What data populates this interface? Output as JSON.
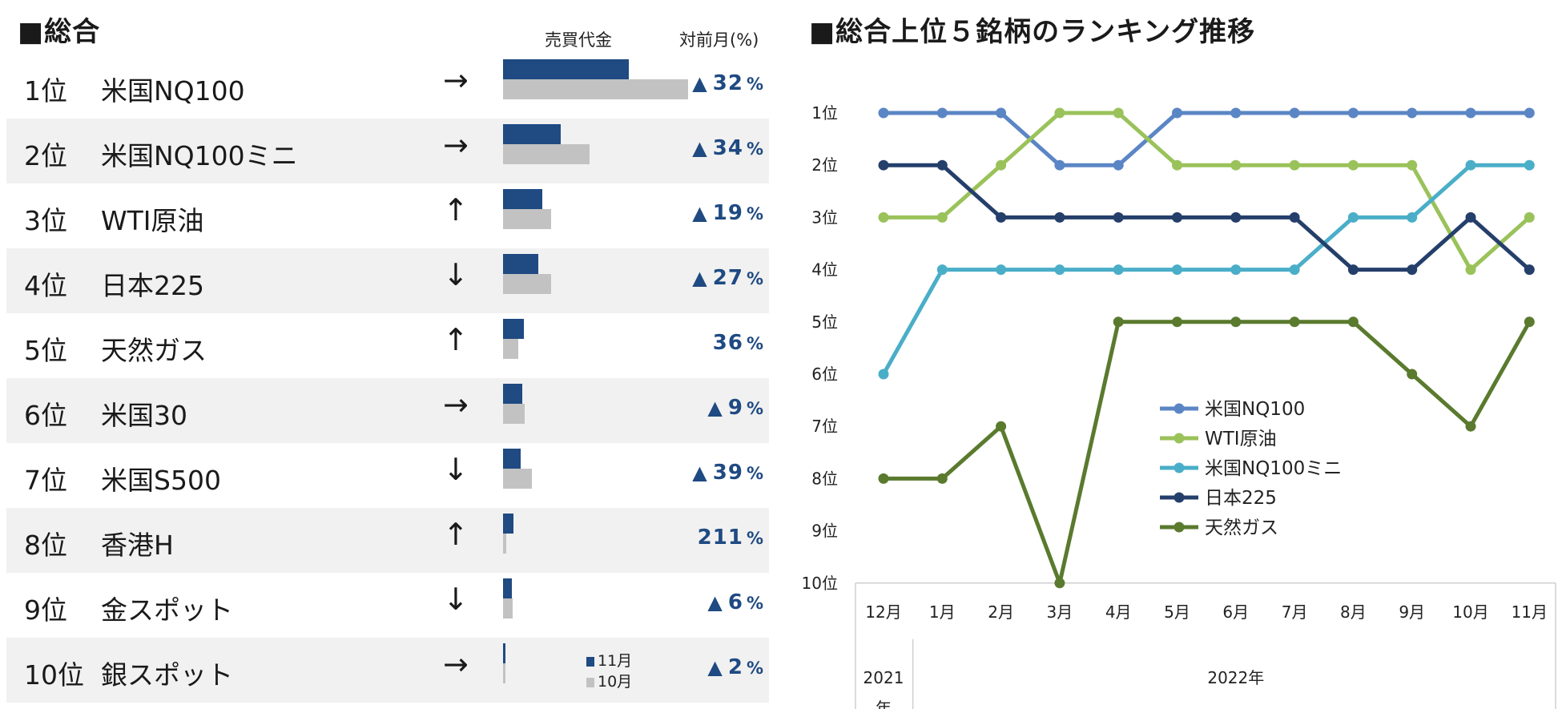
{
  "left": {
    "title": "■総合",
    "header_volume": "売買代金",
    "header_change": "対前月(%)",
    "legend": {
      "nov": "11月",
      "oct": "10月"
    },
    "colors": {
      "nov": "#1f4a82",
      "oct": "#c2c2c2"
    },
    "rows": [
      {
        "rank": "1位",
        "name": "米国NQ100",
        "arrow": "→",
        "nov": 100,
        "oct": 147,
        "triangle": "▲",
        "change": "32",
        "unit": "%"
      },
      {
        "rank": "2位",
        "name": "米国NQ100ミニ",
        "arrow": "→",
        "nov": 46,
        "oct": 69,
        "triangle": "▲",
        "change": "34",
        "unit": "%"
      },
      {
        "rank": "3位",
        "name": "WTI原油",
        "arrow": "↑",
        "nov": 31,
        "oct": 38,
        "triangle": "▲",
        "change": "19",
        "unit": "%"
      },
      {
        "rank": "4位",
        "name": "日本225",
        "arrow": "↓",
        "nov": 28,
        "oct": 38,
        "triangle": "▲",
        "change": "27",
        "unit": "%"
      },
      {
        "rank": "5位",
        "name": "天然ガス",
        "arrow": "↑",
        "nov": 16.5,
        "oct": 12.3,
        "triangle": "",
        "change": "36",
        "unit": "%"
      },
      {
        "rank": "6位",
        "name": "米国30",
        "arrow": "→",
        "nov": 15.5,
        "oct": 17,
        "triangle": "▲",
        "change": "9",
        "unit": "%"
      },
      {
        "rank": "7位",
        "name": "米国S500",
        "arrow": "↓",
        "nov": 14,
        "oct": 23,
        "triangle": "▲",
        "change": "39",
        "unit": "%"
      },
      {
        "rank": "8位",
        "name": "香港H",
        "arrow": "↑",
        "nov": 8,
        "oct": 2.6,
        "triangle": "",
        "change": "211",
        "unit": "%"
      },
      {
        "rank": "9位",
        "name": "金スポット",
        "arrow": "↓",
        "nov": 7,
        "oct": 7.5,
        "triangle": "▲",
        "change": "6",
        "unit": "%"
      },
      {
        "rank": "10位",
        "name": "銀スポット",
        "arrow": "→",
        "nov": 1.8,
        "oct": 1.8,
        "triangle": "▲",
        "change": "2",
        "unit": "%"
      }
    ]
  },
  "chart_data": {
    "type": "line",
    "title": "■総合上位５銘柄のランキング推移",
    "categories": [
      "12月",
      "1月",
      "2月",
      "3月",
      "4月",
      "5月",
      "6月",
      "7月",
      "8月",
      "9月",
      "10月",
      "11月"
    ],
    "year_labels": [
      {
        "label_line1": "2021",
        "label_line2": "年",
        "from": 0,
        "to": 0
      },
      {
        "label_line1": "2022年",
        "label_line2": "",
        "from": 1,
        "to": 11
      }
    ],
    "y_tick_labels": [
      "1位",
      "2位",
      "3位",
      "4位",
      "5位",
      "6位",
      "7位",
      "8位",
      "9位",
      "10位"
    ],
    "ylim": [
      1,
      10
    ],
    "y_inverted": true,
    "series": [
      {
        "name": "米国NQ100",
        "color": "#5b86c5",
        "values": [
          1,
          1,
          1,
          2,
          2,
          1,
          1,
          1,
          1,
          1,
          1,
          1
        ]
      },
      {
        "name": "WTI原油",
        "color": "#9ac25a",
        "values": [
          3,
          3,
          2,
          1,
          1,
          2,
          2,
          2,
          2,
          2,
          4,
          3
        ]
      },
      {
        "name": "米国NQ100ミニ",
        "color": "#4aaec8",
        "values": [
          6,
          4,
          4,
          4,
          4,
          4,
          4,
          4,
          3,
          3,
          2,
          2
        ]
      },
      {
        "name": "日本225",
        "color": "#253f6b",
        "values": [
          2,
          2,
          3,
          3,
          3,
          3,
          3,
          3,
          4,
          4,
          3,
          4
        ]
      },
      {
        "name": "天然ガス",
        "color": "#5a7a2e",
        "values": [
          8,
          8,
          7,
          10,
          5,
          5,
          5,
          5,
          5,
          6,
          7,
          5
        ]
      }
    ]
  }
}
